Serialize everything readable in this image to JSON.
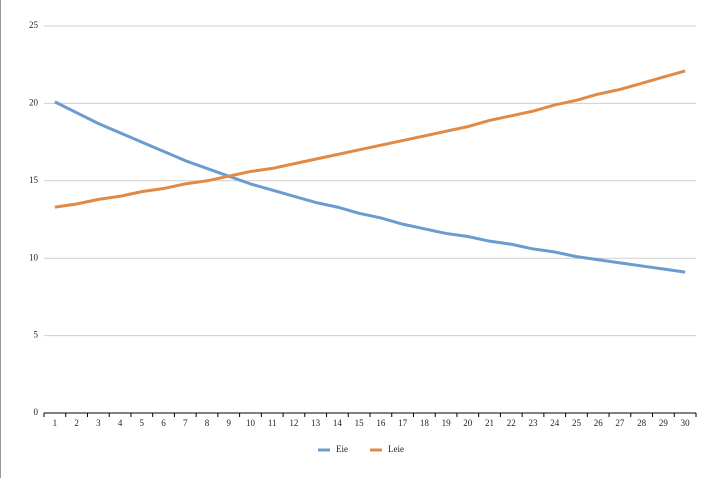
{
  "chart_data": {
    "type": "line",
    "categories": [
      1,
      2,
      3,
      4,
      5,
      6,
      7,
      8,
      9,
      10,
      11,
      12,
      13,
      14,
      15,
      16,
      17,
      18,
      19,
      20,
      21,
      22,
      23,
      24,
      25,
      26,
      27,
      28,
      29,
      30
    ],
    "series": [
      {
        "name": "Eie",
        "color": "#6a9ccf",
        "values": [
          20.1,
          19.4,
          18.7,
          18.1,
          17.5,
          16.9,
          16.3,
          15.8,
          15.3,
          14.8,
          14.4,
          14.0,
          13.6,
          13.3,
          12.9,
          12.6,
          12.2,
          11.9,
          11.6,
          11.4,
          11.1,
          10.9,
          10.6,
          10.4,
          10.1,
          9.9,
          9.7,
          9.5,
          9.3,
          9.1
        ]
      },
      {
        "name": "Leie",
        "color": "#e08a45",
        "values": [
          13.3,
          13.5,
          13.8,
          14.0,
          14.3,
          14.5,
          14.8,
          15.0,
          15.3,
          15.6,
          15.8,
          16.1,
          16.4,
          16.7,
          17.0,
          17.3,
          17.6,
          17.9,
          18.2,
          18.5,
          18.9,
          19.2,
          19.5,
          19.9,
          20.2,
          20.6,
          20.9,
          21.3,
          21.7,
          22.1
        ]
      }
    ],
    "ylim": [
      0,
      25
    ],
    "yticks": [
      0,
      5,
      10,
      15,
      20,
      25
    ],
    "grid": true,
    "legend": "bottom"
  }
}
